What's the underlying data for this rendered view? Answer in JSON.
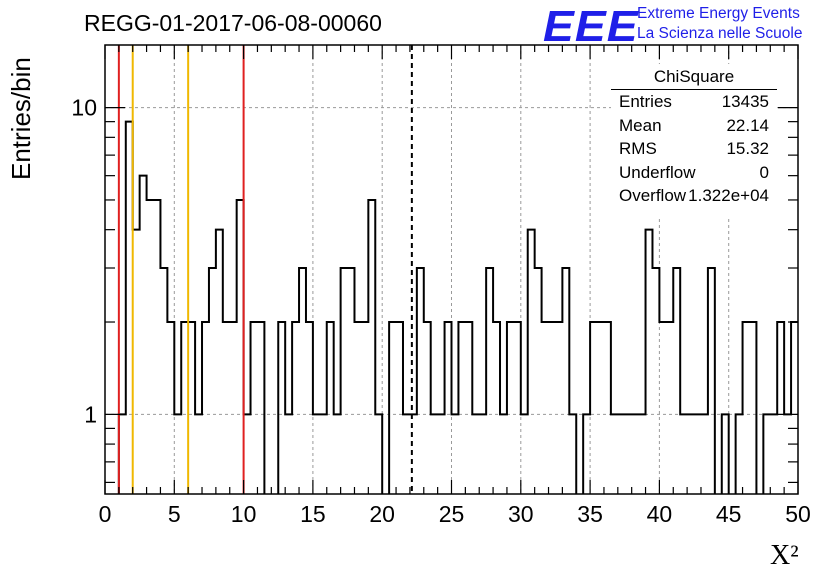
{
  "header": {
    "title": "REGG-01-2017-06-08-00060",
    "logo_text": "EEE",
    "logo_line1": "Extreme Energy Events",
    "logo_line2": "La Scienza nelle Scuole"
  },
  "stats_box": {
    "title": "ChiSquare",
    "rows": [
      {
        "label": "Entries",
        "value": "13435"
      },
      {
        "label": "Mean",
        "value": "22.14"
      },
      {
        "label": "RMS",
        "value": "15.32"
      },
      {
        "label": "Underflow",
        "value": "0"
      },
      {
        "label": "Overflow",
        "value": "1.322e+04"
      }
    ]
  },
  "colors": {
    "frame": "#000000",
    "grid": "#9a9a9a",
    "histogram": "#000000",
    "red_line": "#e02020",
    "yellow_line": "#f0b800",
    "mean_line": "#000000",
    "logo_blue": "#1f1fe8"
  },
  "chart_data": {
    "type": "histogram",
    "title": "REGG-01-2017-06-08-00060",
    "xlabel": "X²",
    "ylabel": "Entries/bin",
    "xlim": [
      0,
      50
    ],
    "ylim": [
      0.55,
      16
    ],
    "yscale": "log",
    "grid": true,
    "x_ticks": [
      0,
      5,
      10,
      15,
      20,
      25,
      30,
      35,
      40,
      45,
      50
    ],
    "y_tick_labels": [
      1,
      10
    ],
    "bin_width": 0.5,
    "bin_values": [
      0,
      0,
      1,
      9,
      4,
      6,
      5,
      5,
      3,
      2,
      1,
      2,
      2,
      1,
      2,
      3,
      4,
      2,
      2,
      5,
      1,
      2,
      2,
      0,
      0,
      2,
      1,
      2,
      3,
      2,
      1,
      1,
      2,
      1,
      3,
      3,
      2,
      2,
      5,
      1,
      0,
      2,
      2,
      1,
      1,
      3,
      2,
      1,
      1,
      2,
      1,
      2,
      2,
      1,
      1,
      3,
      2,
      1,
      2,
      2,
      1,
      4,
      3,
      2,
      2,
      2,
      3,
      1,
      0,
      1,
      2,
      2,
      2,
      1,
      1,
      1,
      1,
      1,
      4,
      3,
      2,
      2,
      3,
      1,
      1,
      1,
      1,
      3,
      0,
      1,
      0,
      1,
      2,
      2,
      0,
      1,
      1,
      2,
      1,
      2
    ],
    "vertical_lines": [
      {
        "x": 1,
        "color": "#e02020"
      },
      {
        "x": 2,
        "color": "#f0b800"
      },
      {
        "x": 6,
        "color": "#f0b800"
      },
      {
        "x": 10,
        "color": "#e02020"
      },
      {
        "x": 22.14,
        "color": "#000000",
        "style": "dashed"
      }
    ]
  }
}
